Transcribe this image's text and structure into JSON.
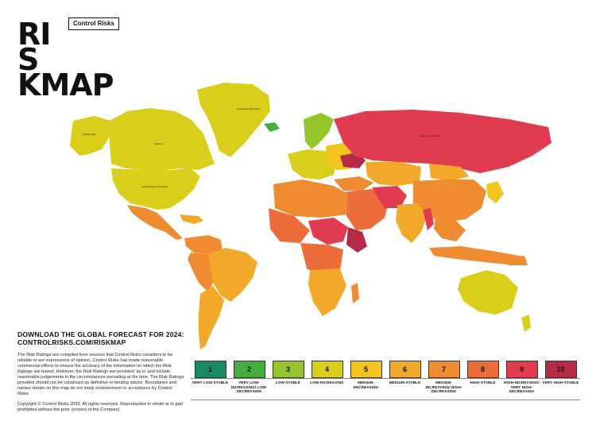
{
  "brand": {
    "company": "Control Risks"
  },
  "logo": {
    "line1": "RI",
    "line2": "S",
    "line3": "KMAP"
  },
  "download": {
    "line1": "DOWNLOAD THE GLOBAL FORECAST FOR 2024:",
    "line2": "CONTROLRISKS.COM/RISKMAP"
  },
  "disclaimer": "The Risk Ratings are compiled from sources that Control Risks considers to be reliable or are expressions of opinion. Control Risks has made reasonable commercial efforts to ensure the accuracy of the information on which the Risk Ratings are based. However, the Risk Ratings are provided 'as is' and include reasonable judgements in the circumstances prevailing at the time. The Risk Ratings provided should not be construed as definitive or binding advice. Boundaries and names shown on this map do not imply endorsement or acceptance by Control Risks.",
  "copyright": "Copyright © Control Risks 2023. All rights reserved. Reproduction in whole or in part prohibited without the prior consent of the Company.",
  "map_labels": {
    "greenland": "Greenland (Denmark)",
    "usa": "United States of America",
    "russia": "Russian Federation",
    "canada": "Canada",
    "alaska": "Alaska (US)"
  },
  "legend": [
    {
      "num": "1",
      "label": "VERY LOW-STABLE",
      "color": "#1a8a64"
    },
    {
      "num": "2",
      "label": "VERY LOW-INCREASING/ LOW-DECREASING",
      "color": "#46ad3f"
    },
    {
      "num": "3",
      "label": "LOW-STABLE",
      "color": "#94c629"
    },
    {
      "num": "4",
      "label": "LOW-INCREASING",
      "color": "#d9cf1a"
    },
    {
      "num": "5",
      "label": "MEDIUM-DECREASING",
      "color": "#f3c41d"
    },
    {
      "num": "6",
      "label": "MEDIUM-STABLE",
      "color": "#f2a92a"
    },
    {
      "num": "7",
      "label": "MEDIUM-INCREASING/ HIGH-DECREASING",
      "color": "#ef8b31"
    },
    {
      "num": "8",
      "label": "HIGH-STABLE",
      "color": "#ec6c3a"
    },
    {
      "num": "9",
      "label": "HIGH-INCREASING/ VERY HIGH-DECREASING",
      "color": "#e13b4f"
    },
    {
      "num": "10",
      "label": "VERY HIGH-STABLE",
      "color": "#b52a47"
    }
  ]
}
